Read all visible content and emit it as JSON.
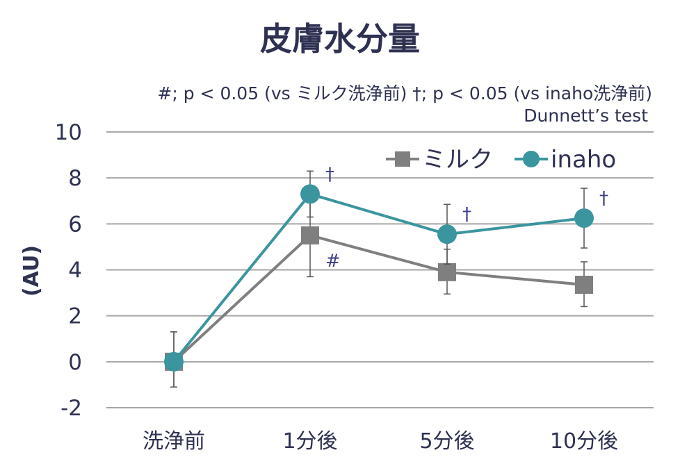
{
  "chart_data": {
    "type": "line",
    "title": "皮膚水分量",
    "note_line1": "#; p < 0.05 (vs ミルク洗浄前) †; p < 0.05 (vs inaho洗浄前)",
    "note_line2": "Dunnett’s test",
    "ylabel": "(AU)",
    "xlabel": "",
    "categories": [
      "洗浄前",
      "1分後",
      "5分後",
      "10分後"
    ],
    "ylim": [
      -2,
      10
    ],
    "yticks": [
      -2,
      0,
      2,
      4,
      6,
      8,
      10
    ],
    "grid": true,
    "legend_position": "top-right",
    "series": [
      {
        "name": "ミルク",
        "marker": "square",
        "color": "#7f7f7f",
        "values": [
          0,
          5.5,
          3.9,
          3.35
        ],
        "error_upper": [
          1.3,
          1.8,
          1.0,
          1.0
        ],
        "error_lower": [
          1.1,
          1.8,
          0.95,
          0.95
        ],
        "significance": [
          "",
          "#",
          "",
          ""
        ]
      },
      {
        "name": "inaho",
        "marker": "circle",
        "color": "#3b959e",
        "values": [
          0,
          7.3,
          5.55,
          6.25
        ],
        "error_upper": [
          1.3,
          1.0,
          1.3,
          1.3
        ],
        "error_lower": [
          1.1,
          1.0,
          1.3,
          1.3
        ],
        "significance": [
          "",
          "†",
          "†",
          "†"
        ]
      }
    ],
    "colors": {
      "text": "#2e3152",
      "grid": "#a6a6a6",
      "significance": "#3d3f8a"
    }
  }
}
